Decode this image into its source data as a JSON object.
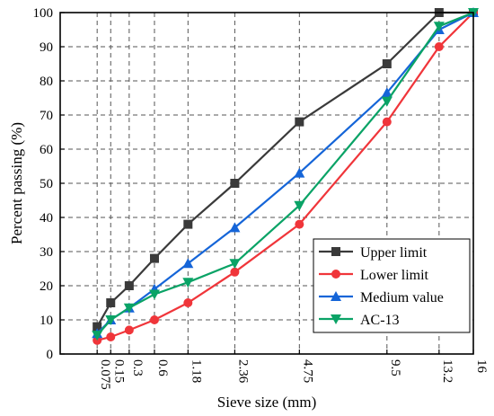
{
  "chart_data": {
    "type": "line",
    "xlabel": "Sieve size (mm)",
    "ylabel": "Percent passing (%)",
    "x_scale": "power-0.45",
    "x": [
      0.075,
      0.15,
      0.3,
      0.6,
      1.18,
      2.36,
      4.75,
      9.5,
      13.2,
      16
    ],
    "x_tick_labels": [
      "0.075",
      "0.15",
      "0.3",
      "0.6",
      "1.18",
      "2.36",
      "4.75",
      "9.5",
      "13.2",
      "16"
    ],
    "ylim": [
      0,
      100
    ],
    "y_ticks": [
      0,
      10,
      20,
      30,
      40,
      50,
      60,
      70,
      80,
      90,
      100
    ],
    "grid": "dashed vertical and horizontal",
    "legend_position": "bottom-right",
    "series": [
      {
        "name": "Upper limit",
        "color": "#3a3a3a",
        "marker": "square",
        "values": [
          8,
          15,
          20,
          28,
          38,
          50,
          68,
          85,
          100,
          100
        ]
      },
      {
        "name": "Lower limit",
        "color": "#f0353a",
        "marker": "circle",
        "values": [
          4,
          5,
          7,
          10,
          15,
          24,
          38,
          68,
          90,
          100
        ]
      },
      {
        "name": "Medium value",
        "color": "#1565d8",
        "marker": "triangle-up",
        "values": [
          6,
          10,
          13.5,
          19,
          26.5,
          37,
          53,
          76.5,
          95,
          100
        ]
      },
      {
        "name": "AC-13",
        "color": "#0aa366",
        "marker": "triangle-down",
        "values": [
          5.5,
          10,
          13.5,
          17.5,
          21,
          26.5,
          43.5,
          74,
          96,
          100
        ]
      }
    ]
  }
}
